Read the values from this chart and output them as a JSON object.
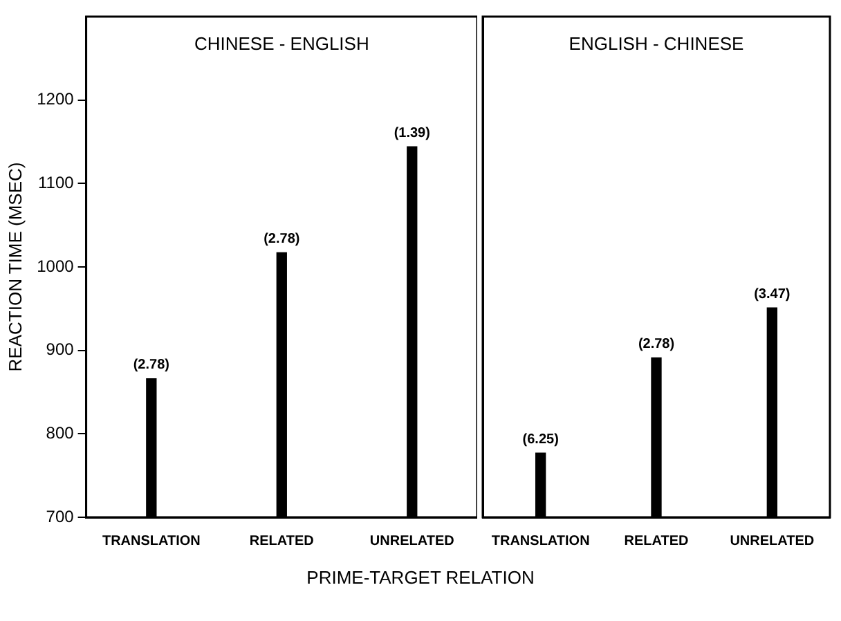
{
  "chart_data": [
    {
      "type": "bar",
      "title": "CHINESE - ENGLISH",
      "ylabel": "REACTION TIME (MSEC)",
      "xlabel": "PRIME-TARGET RELATION",
      "categories": [
        "TRANSLATION",
        "RELATED",
        "UNRELATED"
      ],
      "values": [
        866,
        1017,
        1144
      ],
      "color": "#000000",
      "ylim": [
        700,
        1300
      ],
      "yticks": [
        700,
        800,
        900,
        1000,
        1100,
        1200
      ],
      "grid": false,
      "annotations": [
        {
          "text": "(2.78)",
          "x": "TRANSLATION",
          "y": 866
        },
        {
          "text": "(2.78)",
          "x": "RELATED",
          "y": 1017
        },
        {
          "text": "(1.39)",
          "x": "UNRELATED",
          "y": 1144
        }
      ]
    },
    {
      "type": "bar",
      "title": "ENGLISH - CHINESE",
      "categories": [
        "TRANSLATION",
        "RELATED",
        "UNRELATED"
      ],
      "values": [
        777,
        891,
        951
      ],
      "color": "#000000",
      "ylim": [
        700,
        1300
      ],
      "yticks": [
        700,
        800,
        900,
        1000,
        1100,
        1200
      ],
      "grid": false,
      "tick_labels": "x",
      "annotations": [
        {
          "text": "(6.25)",
          "x": "TRANSLATION",
          "y": 777
        },
        {
          "text": "(2.78)",
          "x": "RELATED",
          "y": 891
        },
        {
          "text": "(3.47)",
          "x": "UNRELATED",
          "y": 951
        }
      ]
    }
  ]
}
